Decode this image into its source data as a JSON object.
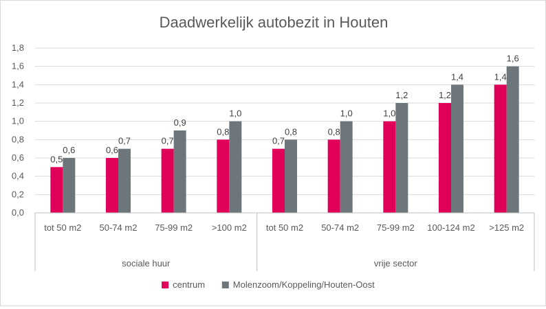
{
  "chart_data": {
    "type": "bar",
    "title": "Daadwerkelijk autobezit in Houten",
    "xlabel": "",
    "ylabel": "",
    "ylim": [
      0,
      1.8
    ],
    "yticks": [
      "0,0",
      "0,2",
      "0,4",
      "0,6",
      "0,8",
      "1,0",
      "1,2",
      "1,4",
      "1,6",
      "1,8"
    ],
    "grid": true,
    "legend": "bottom",
    "groups": [
      {
        "label": "sociale huur",
        "categories": [
          "tot 50 m2",
          "50-74 m2",
          "75-99 m2",
          ">100 m2"
        ]
      },
      {
        "label": "vrije sector",
        "categories": [
          "tot 50 m2",
          "50-74 m2",
          "75-99 m2",
          "100-124 m2",
          ">125 m2"
        ]
      }
    ],
    "categories": [
      "tot 50 m2",
      "50-74 m2",
      "75-99 m2",
      ">100 m2",
      "tot 50 m2",
      "50-74 m2",
      "75-99 m2",
      "100-124 m2",
      ">125 m2"
    ],
    "series": [
      {
        "name": "centrum",
        "color": "#E0005A",
        "values": [
          0.5,
          0.6,
          0.7,
          0.8,
          0.7,
          0.8,
          1.0,
          1.2,
          1.4
        ],
        "labels": [
          "0,5",
          "0,6",
          "0,7",
          "0,8",
          "0,7",
          "0,8",
          "1,0",
          "1,2",
          "1,4"
        ]
      },
      {
        "name": "Molenzoom/Koppeling/Houten-Oost",
        "color": "#6D767B",
        "values": [
          0.6,
          0.7,
          0.9,
          1.0,
          0.8,
          1.0,
          1.2,
          1.4,
          1.6
        ],
        "labels": [
          "0,6",
          "0,7",
          "0,9",
          "1,0",
          "0,8",
          "1,0",
          "1,2",
          "1,4",
          "1,6"
        ]
      }
    ]
  }
}
